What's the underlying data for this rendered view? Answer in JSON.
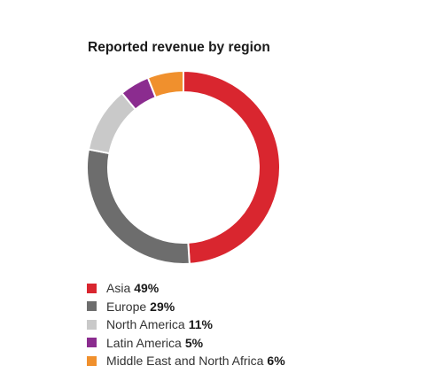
{
  "chart_data": {
    "type": "pie",
    "title": "Reported revenue by region",
    "donut": true,
    "legend_position": "bottom-left",
    "slices": [
      {
        "label": "Asia",
        "value": 49,
        "value_label": "49%",
        "color": "#d9262f"
      },
      {
        "label": "Europe",
        "value": 29,
        "value_label": "29%",
        "color": "#6d6d6d"
      },
      {
        "label": "North America",
        "value": 11,
        "value_label": "11%",
        "color": "#c9c9c9"
      },
      {
        "label": "Latin America",
        "value": 5,
        "value_label": "5%",
        "color": "#8b2c8f"
      },
      {
        "label": "Middle East and North Africa",
        "value": 6,
        "value_label": "6%",
        "color": "#f0902d"
      }
    ]
  }
}
